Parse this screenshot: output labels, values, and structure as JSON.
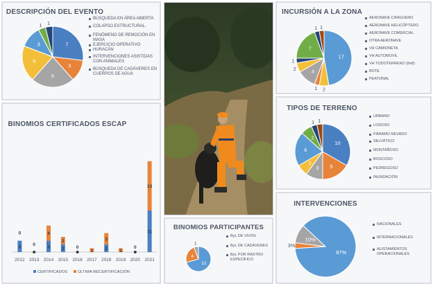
{
  "colors": {
    "blue": "#4a7fc1",
    "orange": "#e8833a",
    "gray": "#a5a5a5",
    "yellow": "#f3bf3a",
    "lightblue": "#5b9bd5",
    "green": "#70ad47",
    "navy": "#264478",
    "brown": "#9e480e",
    "darkgray": "#636363"
  },
  "descripcion": {
    "title": "DESCRIPCIÓN DEL EVENTO",
    "legend": [
      "BÚSQUEDA EN ÁREA ABIERTA",
      "COLAPSO ESTRUCTURAL.",
      "FENÓMENO DE REMOCIÓN EN MASA",
      "EJERCICIO OPERATIVO",
      "HURACÁN",
      "INTERVENCIONES ASISTIDAS CON ANIMALES",
      "BÚSQUEDA DE CADÁVERES EN CUERPOS DE AGUA"
    ]
  },
  "incursion": {
    "title": "INCURSIÓN A LA ZONA",
    "legend": [
      "AERONAVE CARGUERO",
      "AERONAVE HELICÓPTERO",
      "AERONAVE COMERCIAL",
      "OTRA AERONAVE",
      "VH CAMIONETA",
      "VH AUTOMOVIL",
      "VH TODOTERRENO (8x8)",
      "BOTE",
      "PEATONAL"
    ]
  },
  "terreno": {
    "title": "TIPOS DE TERRENO",
    "legend": [
      "URBANO",
      "LODOSO",
      "PÁRAMO-NEVADO",
      "SELVÁTICO",
      "MONTAÑOSO",
      "BOSCOSO",
      "PEDREGOSO",
      "INUNDACIÓN"
    ]
  },
  "intervenciones": {
    "title": "INTERVENCIONES",
    "legend": [
      "NACIONALES",
      "INTERNACIONALES",
      "ALISTAMIENTOS OPERACIONALES"
    ]
  },
  "participantes": {
    "title": "BINOMIOS PARTICIPANTES",
    "legend": [
      "ByL DE VIVOS",
      "ByL DE CADÁVERES",
      "ByL POR RASTRO ESPECÍFICO"
    ]
  },
  "binomios": {
    "title": "BINOMIOS CERTIFICADOS ESCAP",
    "legend": [
      "CERTIFICADOS",
      "ÚLTIMA RECERTIFICACIÓN"
    ]
  },
  "chart_data": [
    {
      "type": "pie",
      "title": "DESCRIPCIÓN DEL EVENTO",
      "values": [
        7,
        3,
        6,
        5,
        3,
        1,
        1
      ],
      "labels": [
        "7",
        "3",
        "6",
        "5",
        "3",
        "1",
        "1"
      ],
      "colors": [
        "#4a7fc1",
        "#e8833a",
        "#a5a5a5",
        "#f3bf3a",
        "#5b9bd5",
        "#70ad47",
        "#264478"
      ]
    },
    {
      "type": "pie",
      "title": "INCURSIÓN A LA ZONA",
      "values": [
        17,
        2,
        1,
        4,
        2,
        1,
        7,
        1,
        1
      ],
      "labels": [
        "17",
        "2",
        "1",
        "4",
        "2",
        "1",
        "7",
        "1",
        "1"
      ],
      "colors": [
        "#5b9bd5",
        "#f3bf3a",
        "#e8833a",
        "#a5a5a5",
        "#f3bf3a",
        "#264478",
        "#70ad47",
        "#264478",
        "#9e480e"
      ]
    },
    {
      "type": "pie",
      "title": "TIPOS DE TERRENO",
      "values": [
        10,
        5,
        3,
        2,
        6,
        2,
        1,
        1
      ],
      "labels": [
        "10",
        "5",
        "3",
        "2",
        "6",
        "2",
        "1",
        "1"
      ],
      "colors": [
        "#4a7fc1",
        "#e8833a",
        "#a5a5a5",
        "#f3bf3a",
        "#5b9bd5",
        "#70ad47",
        "#264478",
        "#9e480e"
      ]
    },
    {
      "type": "pie",
      "title": "INTERVENCIONES",
      "values": [
        87,
        3,
        10
      ],
      "labels": [
        "87%",
        "3%",
        "10%"
      ],
      "colors": [
        "#5b9bd5",
        "#e8833a",
        "#a5a5a5"
      ]
    },
    {
      "type": "pie",
      "title": "BINOMIOS PARTICIPANTES",
      "values": [
        12,
        4,
        1
      ],
      "labels": [
        "12",
        "4",
        "1"
      ],
      "colors": [
        "#5b9bd5",
        "#e8833a",
        "#a5a5a5"
      ]
    },
    {
      "type": "bar",
      "title": "BINOMIOS CERTIFICADOS ESCAP",
      "categories": [
        "2012",
        "2013",
        "2014",
        "2015",
        "2016",
        "2017",
        "2018",
        "2019",
        "2020",
        "2021"
      ],
      "series": [
        {
          "name": "CERTIFICADOS",
          "values": [
            3,
            0,
            3,
            2,
            0,
            0,
            2,
            0,
            0,
            11
          ],
          "labels": [
            "3",
            "",
            "3",
            "2",
            "0",
            "",
            "2",
            "",
            "0",
            "11"
          ]
        },
        {
          "name": "ÚLTIMA RECERTIFICACIÓN",
          "values": [
            0,
            0,
            4,
            2,
            0,
            1,
            3,
            1,
            0,
            13
          ],
          "labels": [
            "0",
            "0",
            "4",
            "2",
            "",
            "1",
            "3",
            "1",
            "",
            "13"
          ]
        }
      ],
      "ylim": [
        0,
        30
      ]
    }
  ]
}
